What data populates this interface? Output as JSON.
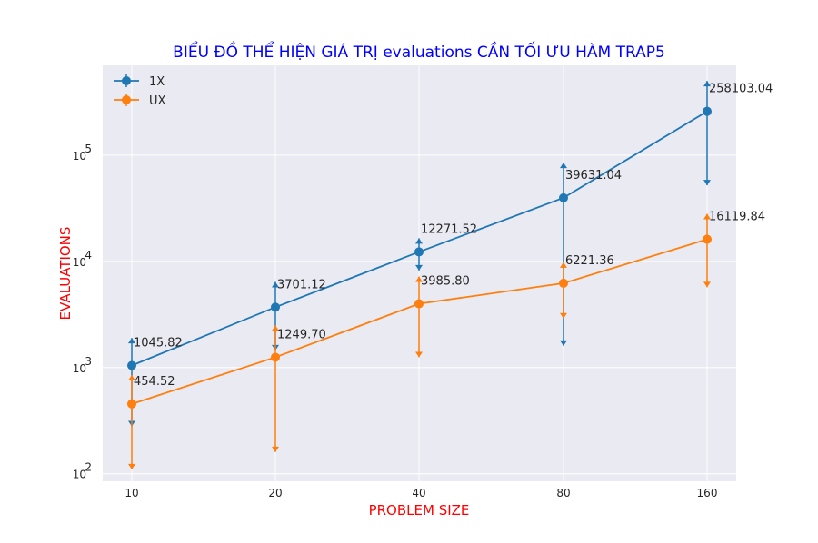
{
  "chart_data": {
    "type": "line",
    "title": "BIỂU ĐỒ THỂ HIỆN GIÁ TRỊ evaluations CẦN TỐI ƯU HÀM TRAP5",
    "xlabel": "PROBLEM SIZE",
    "ylabel": "EVALUATIONS",
    "yscale": "log",
    "ylim": [
      85,
      700000
    ],
    "categories": [
      "10",
      "20",
      "40",
      "80",
      "160"
    ],
    "y_ticks": [
      {
        "value": 100,
        "base": "10",
        "exp": "2"
      },
      {
        "value": 1000,
        "base": "10",
        "exp": "3"
      },
      {
        "value": 10000,
        "base": "10",
        "exp": "4"
      },
      {
        "value": 100000,
        "base": "10",
        "exp": "5"
      }
    ],
    "grid": true,
    "legend_position": "upper-left",
    "series": [
      {
        "name": "1X",
        "color": "#1f77b4",
        "values": [
          1045.82,
          3701.12,
          12271.52,
          39631.04,
          258103.04
        ],
        "labels": [
          "1045.82",
          "3701.12",
          "12271.52",
          "39631.04",
          "258103.04"
        ],
        "err_low": [
          280,
          1450,
          8200,
          1600,
          52000
        ],
        "err_high": [
          1900,
          6400,
          16500,
          85000,
          500000
        ]
      },
      {
        "name": "UX",
        "color": "#ff7f0e",
        "values": [
          454.52,
          1249.7,
          3985.8,
          6221.36,
          16119.84
        ],
        "labels": [
          "454.52",
          "1249.70",
          "3985.80",
          "6221.36",
          "16119.84"
        ],
        "err_low": [
          110,
          160,
          1250,
          2900,
          5700
        ],
        "err_high": [
          850,
          2500,
          7200,
          9800,
          28000
        ]
      }
    ]
  }
}
